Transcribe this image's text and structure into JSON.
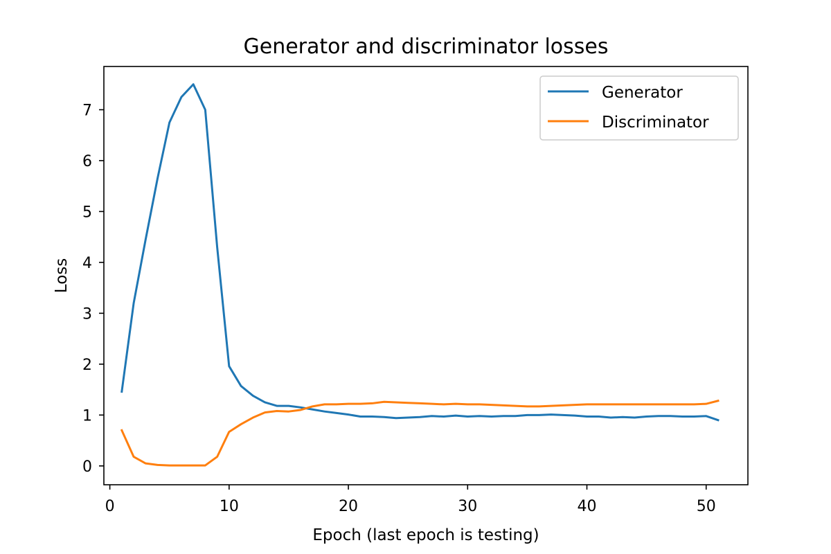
{
  "chart_data": {
    "type": "line",
    "title": "Generator and discriminator losses",
    "xlabel": "Epoch (last epoch is testing)",
    "ylabel": "Loss",
    "xlim": [
      -0.5,
      53.5
    ],
    "ylim": [
      -0.37,
      7.85
    ],
    "xticks": [
      0,
      10,
      20,
      30,
      40,
      50
    ],
    "yticks": [
      0,
      1,
      2,
      3,
      4,
      5,
      6,
      7
    ],
    "grid": false,
    "legend_position": "top-right",
    "x": [
      1,
      2,
      3,
      4,
      5,
      6,
      7,
      8,
      9,
      10,
      11,
      12,
      13,
      14,
      15,
      16,
      17,
      18,
      19,
      20,
      21,
      22,
      23,
      24,
      25,
      26,
      27,
      28,
      29,
      30,
      31,
      32,
      33,
      34,
      35,
      36,
      37,
      38,
      39,
      40,
      41,
      42,
      43,
      44,
      45,
      46,
      47,
      48,
      49,
      50,
      51
    ],
    "series": [
      {
        "name": "Generator",
        "color": "#1f77b4",
        "values": [
          1.46,
          3.2,
          4.45,
          5.65,
          6.75,
          7.25,
          7.5,
          7.0,
          4.3,
          1.96,
          1.57,
          1.38,
          1.25,
          1.18,
          1.18,
          1.15,
          1.11,
          1.07,
          1.04,
          1.01,
          0.97,
          0.97,
          0.96,
          0.94,
          0.95,
          0.96,
          0.98,
          0.97,
          0.99,
          0.97,
          0.98,
          0.97,
          0.98,
          0.98,
          1.0,
          1.0,
          1.01,
          1.0,
          0.99,
          0.97,
          0.97,
          0.95,
          0.96,
          0.95,
          0.97,
          0.98,
          0.98,
          0.97,
          0.97,
          0.98,
          0.9
        ]
      },
      {
        "name": "Discriminator",
        "color": "#ff7f0e",
        "values": [
          0.7,
          0.18,
          0.05,
          0.02,
          0.01,
          0.01,
          0.01,
          0.01,
          0.18,
          0.67,
          0.82,
          0.95,
          1.05,
          1.08,
          1.07,
          1.1,
          1.17,
          1.21,
          1.21,
          1.22,
          1.22,
          1.23,
          1.26,
          1.25,
          1.24,
          1.23,
          1.22,
          1.21,
          1.22,
          1.21,
          1.21,
          1.2,
          1.19,
          1.18,
          1.17,
          1.17,
          1.18,
          1.19,
          1.2,
          1.21,
          1.21,
          1.21,
          1.21,
          1.21,
          1.21,
          1.21,
          1.21,
          1.21,
          1.21,
          1.22,
          1.28
        ]
      }
    ]
  }
}
